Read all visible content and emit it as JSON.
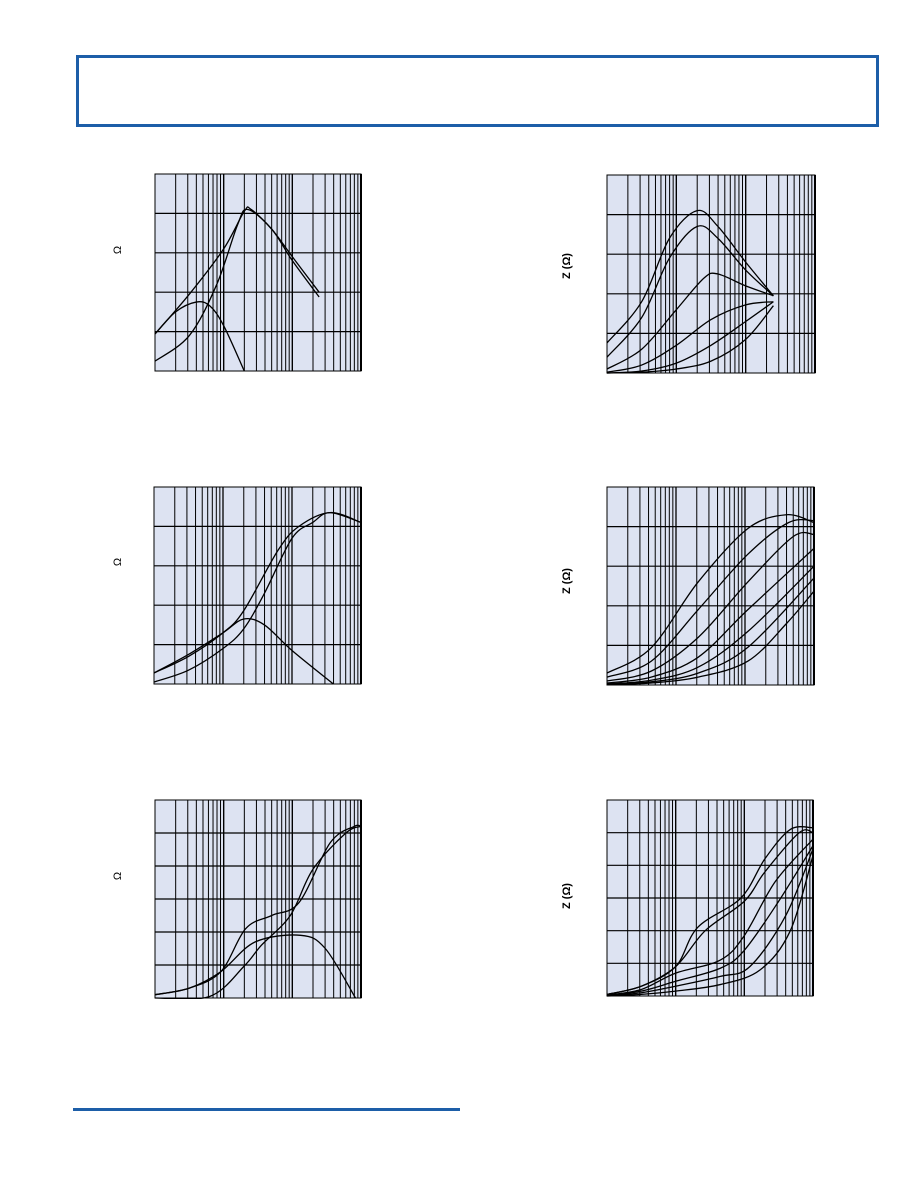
{
  "colors": {
    "accent": "#1d5ea8",
    "plot_bg": "#dde3f2",
    "grid": "#000000",
    "curve": "#000000"
  },
  "chart_data": [
    {
      "type": "line",
      "ylabel": "Ω",
      "x_scale": "log",
      "x_decades": 3,
      "y_divisions": 5,
      "grid": true,
      "series": [
        {
          "points": [
            [
              0,
              0.94
            ],
            [
              0.5,
              1.95
            ],
            [
              1.0,
              3.1
            ],
            [
              1.3,
              4.05
            ],
            [
              1.4,
              4.1
            ],
            [
              1.7,
              3.6
            ],
            [
              2.0,
              2.9
            ],
            [
              2.39,
              2.0
            ]
          ]
        },
        {
          "points": [
            [
              0,
              0.25
            ],
            [
              0.5,
              0.9
            ],
            [
              0.9,
              2.2
            ],
            [
              1.2,
              3.7
            ],
            [
              1.35,
              4.1
            ],
            [
              1.7,
              3.6
            ],
            [
              2.0,
              2.8
            ],
            [
              2.39,
              1.88
            ]
          ]
        },
        {
          "points": [
            [
              0,
              0.94
            ],
            [
              0.3,
              1.5
            ],
            [
              0.6,
              1.75
            ],
            [
              0.8,
              1.65
            ],
            [
              1.0,
              1.15
            ],
            [
              1.3,
              0
            ]
          ]
        }
      ]
    },
    {
      "type": "line",
      "ylabel": "Z (Ω)",
      "x_scale": "log",
      "x_decades": 3,
      "y_divisions": 5,
      "grid": true,
      "series": [
        {
          "points": [
            [
              0,
              0.76
            ],
            [
              0.5,
              1.8
            ],
            [
              0.9,
              3.4
            ],
            [
              1.3,
              4.1
            ],
            [
              1.6,
              3.7
            ],
            [
              2.0,
              2.8
            ],
            [
              2.4,
              1.95
            ]
          ]
        },
        {
          "points": [
            [
              0,
              0.4
            ],
            [
              0.5,
              1.4
            ],
            [
              0.9,
              2.9
            ],
            [
              1.3,
              3.7
            ],
            [
              1.6,
              3.4
            ],
            [
              2.0,
              2.6
            ],
            [
              2.4,
              1.95
            ]
          ]
        },
        {
          "points": [
            [
              0,
              0.1
            ],
            [
              0.5,
              0.6
            ],
            [
              1.0,
              1.6
            ],
            [
              1.4,
              2.4
            ],
            [
              1.6,
              2.5
            ],
            [
              2.0,
              2.2
            ],
            [
              2.4,
              1.95
            ]
          ]
        },
        {
          "points": [
            [
              0,
              0.02
            ],
            [
              0.5,
              0.2
            ],
            [
              1.0,
              0.7
            ],
            [
              1.5,
              1.35
            ],
            [
              2.0,
              1.72
            ],
            [
              2.4,
              1.8
            ]
          ]
        },
        {
          "points": [
            [
              0,
              0
            ],
            [
              0.5,
              0.05
            ],
            [
              1.0,
              0.25
            ],
            [
              1.5,
              0.7
            ],
            [
              2.0,
              1.3
            ],
            [
              2.4,
              1.8
            ]
          ]
        },
        {
          "points": [
            [
              0,
              0
            ],
            [
              0.5,
              0.02
            ],
            [
              1.0,
              0.1
            ],
            [
              1.5,
              0.3
            ],
            [
              2.0,
              0.85
            ],
            [
              2.4,
              1.7
            ]
          ]
        }
      ]
    },
    {
      "type": "line",
      "ylabel": "Ω",
      "x_scale": "log",
      "x_decades": 3,
      "y_divisions": 5,
      "grid": true,
      "series": [
        {
          "points": [
            [
              0,
              0.28
            ],
            [
              0.5,
              0.7
            ],
            [
              1.0,
              1.3
            ],
            [
              1.3,
              1.86
            ],
            [
              1.8,
              3.4
            ],
            [
              2.1,
              4.0
            ],
            [
              2.55,
              4.35
            ],
            [
              3,
              4.1
            ]
          ]
        },
        {
          "points": [
            [
              0,
              0.05
            ],
            [
              0.5,
              0.35
            ],
            [
              1.0,
              0.9
            ],
            [
              1.3,
              1.4
            ],
            [
              1.6,
              2.3
            ],
            [
              2.0,
              3.7
            ],
            [
              2.3,
              4.1
            ],
            [
              2.55,
              4.35
            ],
            [
              3,
              4.1
            ]
          ]
        },
        {
          "points": [
            [
              0,
              0.28
            ],
            [
              0.5,
              0.75
            ],
            [
              1.0,
              1.3
            ],
            [
              1.3,
              1.65
            ],
            [
              1.6,
              1.5
            ],
            [
              2.0,
              0.85
            ],
            [
              2.6,
              0
            ]
          ]
        }
      ]
    },
    {
      "type": "line",
      "ylabel": "Z (Ω)",
      "x_scale": "log",
      "x_decades": 3,
      "y_divisions": 5,
      "grid": true,
      "series": [
        {
          "points": [
            [
              0,
              0.3
            ],
            [
              0.64,
              0.94
            ],
            [
              1.32,
              2.6
            ],
            [
              2.04,
              3.95
            ],
            [
              2.6,
              4.3
            ],
            [
              3,
              4.1
            ]
          ]
        },
        {
          "points": [
            [
              0,
              0.2
            ],
            [
              0.64,
              0.6
            ],
            [
              1.32,
              1.9
            ],
            [
              2.04,
              3.3
            ],
            [
              2.63,
              4.1
            ],
            [
              3,
              4.15
            ]
          ]
        },
        {
          "points": [
            [
              0,
              0.1
            ],
            [
              0.64,
              0.35
            ],
            [
              1.32,
              1.2
            ],
            [
              2.04,
              2.6
            ],
            [
              2.7,
              3.75
            ],
            [
              3,
              3.8
            ]
          ]
        },
        {
          "points": [
            [
              0,
              0.05
            ],
            [
              0.64,
              0.2
            ],
            [
              1.32,
              0.7
            ],
            [
              2.04,
              1.9
            ],
            [
              3,
              3.45
            ]
          ]
        },
        {
          "points": [
            [
              0,
              0.03
            ],
            [
              0.64,
              0.12
            ],
            [
              1.32,
              0.45
            ],
            [
              2.04,
              1.35
            ],
            [
              3,
              3.0
            ]
          ]
        },
        {
          "points": [
            [
              0,
              0.02
            ],
            [
              0.64,
              0.08
            ],
            [
              1.32,
              0.3
            ],
            [
              2.04,
              0.95
            ],
            [
              3,
              2.7
            ]
          ]
        },
        {
          "points": [
            [
              0,
              0.01
            ],
            [
              0.64,
              0.05
            ],
            [
              1.32,
              0.2
            ],
            [
              2.04,
              0.6
            ],
            [
              2.6,
              1.55
            ],
            [
              3,
              2.37
            ]
          ]
        }
      ]
    },
    {
      "type": "line",
      "ylabel": "Ω",
      "x_scale": "log",
      "x_decades": 3,
      "y_divisions": 6,
      "grid": true,
      "series": [
        {
          "points": [
            [
              0,
              0.1
            ],
            [
              0.5,
              0.3
            ],
            [
              0.96,
              0.8
            ],
            [
              1.32,
              2.1
            ],
            [
              1.7,
              2.5
            ],
            [
              2.1,
              2.9
            ],
            [
              2.55,
              4.7
            ],
            [
              2.9,
              5.2
            ],
            [
              3,
              5.2
            ]
          ]
        },
        {
          "points": [
            [
              0,
              0
            ],
            [
              0.8,
              0.05
            ],
            [
              1.3,
              0.97
            ],
            [
              1.55,
              1.6
            ],
            [
              1.97,
              2.5
            ],
            [
              2.3,
              3.9
            ],
            [
              2.78,
              5.0
            ],
            [
              3,
              5.2
            ]
          ]
        },
        {
          "points": [
            [
              0,
              0.1
            ],
            [
              0.5,
              0.3
            ],
            [
              0.96,
              0.8
            ],
            [
              1.46,
              1.7
            ],
            [
              2.12,
              1.9
            ],
            [
              2.48,
              1.5
            ],
            [
              2.92,
              0
            ]
          ]
        }
      ]
    },
    {
      "type": "line",
      "ylabel": "Z (Ω)",
      "x_scale": "log",
      "x_decades": 3,
      "y_divisions": 6,
      "grid": true,
      "series": [
        {
          "points": [
            [
              0,
              0.05
            ],
            [
              0.5,
              0.3
            ],
            [
              1.0,
              0.9
            ],
            [
              1.32,
              2.1
            ],
            [
              1.95,
              3.0
            ],
            [
              2.3,
              4.2
            ],
            [
              2.67,
              5.1
            ],
            [
              3,
              5.15
            ]
          ]
        },
        {
          "points": [
            [
              0,
              0.05
            ],
            [
              0.5,
              0.3
            ],
            [
              1.0,
              0.9
            ],
            [
              1.43,
              2.0
            ],
            [
              2.0,
              2.9
            ],
            [
              2.3,
              3.8
            ],
            [
              2.8,
              5.0
            ],
            [
              3,
              5.0
            ]
          ]
        },
        {
          "points": [
            [
              0,
              0.03
            ],
            [
              0.5,
              0.2
            ],
            [
              1.0,
              0.7
            ],
            [
              1.65,
              1.1
            ],
            [
              2.0,
              1.85
            ],
            [
              2.45,
              3.5
            ],
            [
              3,
              4.8
            ]
          ]
        },
        {
          "points": [
            [
              0,
              0.02
            ],
            [
              0.5,
              0.15
            ],
            [
              1.0,
              0.45
            ],
            [
              1.65,
              0.85
            ],
            [
              2.0,
              1.4
            ],
            [
              2.5,
              2.9
            ],
            [
              3,
              4.6
            ]
          ]
        },
        {
          "points": [
            [
              0,
              0.01
            ],
            [
              0.5,
              0.1
            ],
            [
              1.0,
              0.3
            ],
            [
              1.65,
              0.6
            ],
            [
              2.08,
              0.9
            ],
            [
              2.6,
              2.45
            ],
            [
              3,
              4.5
            ]
          ]
        },
        {
          "points": [
            [
              0,
              0
            ],
            [
              0.5,
              0.05
            ],
            [
              1.0,
              0.15
            ],
            [
              1.65,
              0.35
            ],
            [
              2.23,
              0.8
            ],
            [
              2.67,
              2.0
            ],
            [
              3,
              4.3
            ]
          ]
        }
      ]
    }
  ]
}
